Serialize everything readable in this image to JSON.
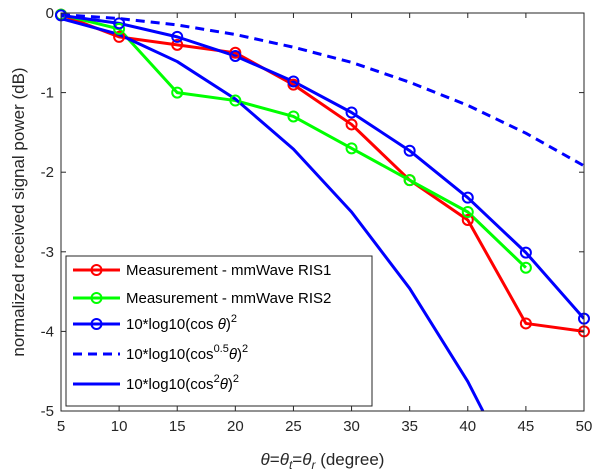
{
  "chart_data": {
    "type": "line",
    "xlabel": "θ=θt=θr (degree)",
    "xlabel_parts": {
      "theta": "θ",
      "eq1": "=",
      "theta_t_base": "θ",
      "theta_t_sub": "t",
      "eq2": "=",
      "theta_r_base": "θ",
      "theta_r_sub": "r",
      "unit": " (degree)"
    },
    "ylabel": "normalized received signal power (dB)",
    "xlim": [
      5,
      50
    ],
    "ylim": [
      -5,
      0
    ],
    "xticks": [
      "5",
      "10",
      "15",
      "20",
      "25",
      "30",
      "35",
      "40",
      "45",
      "50"
    ],
    "yticks": [
      "0",
      "-1",
      "-2",
      "-3",
      "-4",
      "-5"
    ],
    "grid": false,
    "legend_position": "bottom-left",
    "series": [
      {
        "name": "Measurement - mmWave RIS1",
        "legend_parts": {
          "main": "Measurement - mmWave RIS1"
        },
        "color": "#ff0000",
        "style": "solid",
        "marker": "circle",
        "x": [
          5,
          10,
          15,
          20,
          25,
          30,
          35,
          40,
          45,
          50
        ],
        "y": [
          -0.02,
          -0.3,
          -0.4,
          -0.5,
          -0.9,
          -1.4,
          -2.1,
          -2.6,
          -3.9,
          -4.0
        ]
      },
      {
        "name": "Measurement - mmWave RIS2",
        "legend_parts": {
          "main": "Measurement - mmWave RIS2"
        },
        "color": "#00ff00",
        "style": "solid",
        "marker": "circle",
        "x": [
          5,
          10,
          15,
          20,
          25,
          30,
          35,
          40,
          45
        ],
        "y": [
          -0.02,
          -0.2,
          -1.0,
          -1.1,
          -1.3,
          -1.7,
          -2.1,
          -2.5,
          -3.2
        ]
      },
      {
        "name": "10*log10(cos θ)^2",
        "legend_parts": {
          "main": "10*log10(cos ",
          "italic": "θ",
          "close": ")",
          "sup": "2"
        },
        "color": "#0000ff",
        "style": "solid",
        "marker": "circle",
        "x": [
          5,
          10,
          15,
          20,
          25,
          30,
          35,
          40,
          45,
          50
        ],
        "y": [
          -0.03,
          -0.13,
          -0.3,
          -0.54,
          -0.86,
          -1.25,
          -1.73,
          -2.32,
          -3.01,
          -3.84
        ]
      },
      {
        "name": "10*log10(cos^0.5 θ)^2",
        "legend_parts": {
          "main": "10*log10(cos",
          "sup_inner": "0.5",
          "italic": "θ",
          "close": ")",
          "sup": "2"
        },
        "color": "#0000ff",
        "style": "dashed",
        "marker": "none",
        "x": [
          5,
          10,
          15,
          20,
          25,
          30,
          35,
          40,
          45,
          50
        ],
        "y": [
          -0.02,
          -0.07,
          -0.15,
          -0.27,
          -0.43,
          -0.62,
          -0.87,
          -1.16,
          -1.51,
          -1.92
        ]
      },
      {
        "name": "10*log10(cos^2 θ)^2",
        "legend_parts": {
          "main": "10*log10(cos",
          "sup_inner": "2",
          "italic": "θ",
          "close": ")",
          "sup": "2"
        },
        "color": "#0000ff",
        "style": "solid",
        "marker": "none",
        "x": [
          5,
          10,
          15,
          20,
          25,
          30,
          35,
          40,
          41.3
        ],
        "y": [
          -0.07,
          -0.27,
          -0.61,
          -1.08,
          -1.71,
          -2.5,
          -3.46,
          -4.63,
          -5.0
        ]
      }
    ]
  }
}
